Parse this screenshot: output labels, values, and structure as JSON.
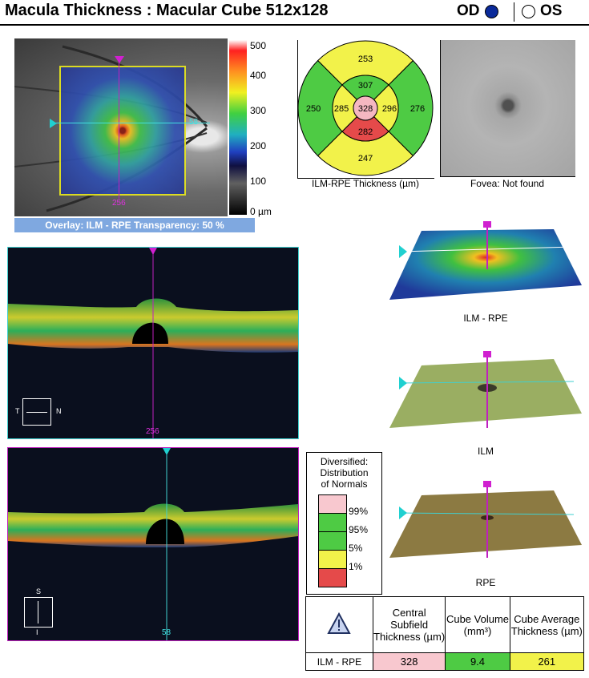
{
  "header": {
    "title": "Macula Thickness : Macular Cube 512x128",
    "od_label": "OD",
    "os_label": "OS",
    "od_selected": true,
    "od_dot_color": "#0a2a9a"
  },
  "fundus": {
    "bscan_marker_top": "256",
    "bscan_marker_right": "58",
    "overlay_label": "Overlay: ILM - RPE  Transparency: 50 %"
  },
  "colorbar": {
    "ticks": [
      "500",
      "400",
      "300",
      "200",
      "100",
      "0 µm"
    ]
  },
  "etdrs": {
    "values": {
      "superior_outer": "253",
      "superior_inner": "307",
      "nasal_outer": "276",
      "nasal_inner": "296",
      "inferior_outer": "247",
      "inferior_inner": "282",
      "temporal_outer": "250",
      "temporal_inner": "285",
      "center": "328"
    },
    "colors": {
      "superior_outer": "#f2f24a",
      "superior_inner": "#4ecb44",
      "nasal_outer": "#4ecb44",
      "nasal_inner": "#f2f24a",
      "inferior_outer": "#f2f24a",
      "inferior_inner": "#e54a4a",
      "temporal_outer": "#4ecb44",
      "temporal_inner": "#f2f24a",
      "center": "#f5b7c1"
    },
    "caption": "ILM-RPE Thickness (µm)"
  },
  "fovea": {
    "caption": "Fovea: Not found"
  },
  "scan1": {
    "marker_bottom": "256",
    "orientation_left": "T",
    "orientation_right": "N"
  },
  "scan2": {
    "marker_bottom": "58",
    "orientation_top": "S",
    "orientation_bottom": "I"
  },
  "surfaces": [
    {
      "caption": "ILM - RPE"
    },
    {
      "caption": "ILM"
    },
    {
      "caption": "RPE"
    }
  ],
  "legend": {
    "title_line1": "Diversified:",
    "title_line2": "Distribution",
    "title_line3": "of Normals",
    "swatches": [
      {
        "color": "#f8c8cf",
        "label": ""
      },
      {
        "color": "#4ecb44",
        "label": "99%"
      },
      {
        "color": "#f2f24a",
        "label": "95%"
      },
      {
        "color": "#e54a4a",
        "label": "5%"
      },
      {
        "color": "#e54a4a",
        "label": "1%"
      }
    ],
    "levels": [
      "99%",
      "95%",
      "5%",
      "1%"
    ]
  },
  "summary": {
    "col1": "Central Subfield Thickness (µm)",
    "col2": "Cube Volume (mm³)",
    "col3": "Cube Average Thickness (µm)",
    "row_label": "ILM - RPE",
    "central": "328",
    "volume": "9.4",
    "average": "261",
    "central_color": "#f8c8cf",
    "volume_color": "#4ecb44",
    "average_color": "#f2f24a"
  }
}
